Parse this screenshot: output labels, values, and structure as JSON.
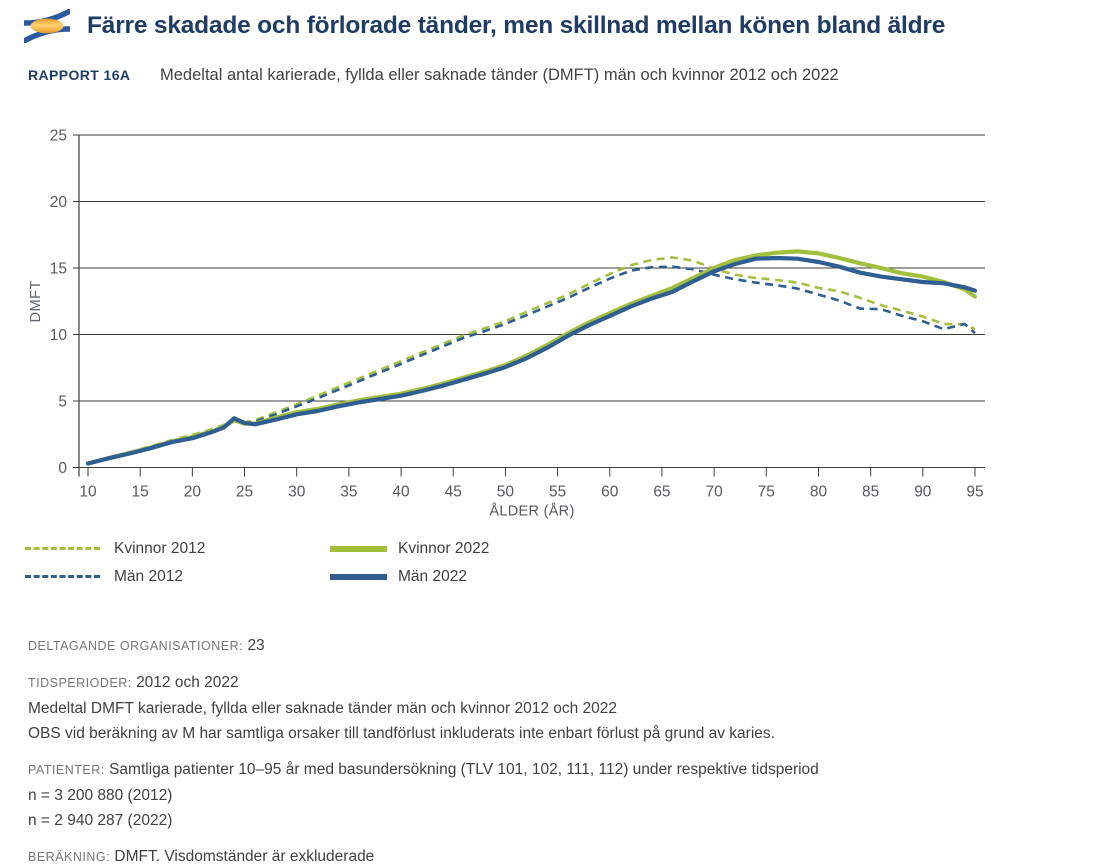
{
  "header": {
    "title": "Färre skadade och förlorade tänder, men skillnad mellan könen bland äldre"
  },
  "report": {
    "tag": "RAPPORT 16A",
    "subtitle": "Medeltal antal karierade, fyllda eller saknade tänder (DMFT) män och kvinnor 2012 och 2022"
  },
  "colors": {
    "brand_navy": "#1e3c64",
    "green": "#a3bf3b",
    "blue": "#2e5e92",
    "axis": "#3d3d3d",
    "tick_text": "#55595e",
    "body_text": "#414141",
    "label_text": "#767676",
    "logo_blue": "#2b5aa0",
    "logo_gold": "#efa42f"
  },
  "chart_data": {
    "type": "line",
    "title": "Medeltal antal karierade, fyllda eller saknade tänder (DMFT) män och kvinnor 2012 och 2022",
    "xlabel": "ÅLDER (ÅR)",
    "ylabel": "DMFT",
    "xlim": [
      10,
      95
    ],
    "ylim": [
      0,
      25
    ],
    "xticks": [
      10,
      15,
      20,
      25,
      30,
      35,
      40,
      45,
      50,
      55,
      60,
      65,
      70,
      75,
      80,
      85,
      90,
      95
    ],
    "yticks": [
      0,
      5,
      10,
      15,
      20,
      25
    ],
    "grid": true,
    "legend_position": "bottom-left",
    "x": [
      10,
      12,
      14,
      16,
      18,
      20,
      22,
      23,
      24,
      25,
      26,
      28,
      30,
      32,
      34,
      36,
      38,
      40,
      42,
      44,
      46,
      48,
      50,
      52,
      54,
      56,
      58,
      60,
      62,
      64,
      66,
      68,
      70,
      72,
      74,
      76,
      78,
      80,
      82,
      84,
      86,
      88,
      90,
      92,
      94,
      95
    ],
    "series": [
      {
        "name": "Kvinnor 2012",
        "color": "#a3bf3b",
        "dash": true,
        "values": [
          0.3,
          0.75,
          1.15,
          1.6,
          2.05,
          2.45,
          2.9,
          3.2,
          3.6,
          3.4,
          3.55,
          4.15,
          4.75,
          5.4,
          6.05,
          6.7,
          7.35,
          8.0,
          8.65,
          9.3,
          9.95,
          10.45,
          11.0,
          11.7,
          12.35,
          13.0,
          13.8,
          14.55,
          15.2,
          15.6,
          15.8,
          15.55,
          14.95,
          14.5,
          14.25,
          14.1,
          13.9,
          13.5,
          13.25,
          12.75,
          12.2,
          11.8,
          11.35,
          10.8,
          10.75,
          10.4
        ]
      },
      {
        "name": "Män 2012",
        "color": "#2e5e92",
        "dash": true,
        "values": [
          0.3,
          0.7,
          1.1,
          1.5,
          2.0,
          2.3,
          2.8,
          3.1,
          3.5,
          3.3,
          3.45,
          4.0,
          4.6,
          5.2,
          5.85,
          6.5,
          7.15,
          7.8,
          8.45,
          9.1,
          9.75,
          10.25,
          10.8,
          11.45,
          12.1,
          12.75,
          13.5,
          14.2,
          14.8,
          15.05,
          15.1,
          14.9,
          14.5,
          14.15,
          13.9,
          13.7,
          13.45,
          13.0,
          12.55,
          11.95,
          11.9,
          11.4,
          11.0,
          10.4,
          10.8,
          10.1
        ]
      },
      {
        "name": "Kvinnor 2022",
        "color": "#a3bf3b",
        "dash": false,
        "values": [
          0.3,
          0.7,
          1.1,
          1.5,
          1.95,
          2.3,
          2.75,
          3.05,
          3.55,
          3.3,
          3.3,
          3.75,
          4.15,
          4.4,
          4.75,
          5.05,
          5.3,
          5.55,
          5.9,
          6.3,
          6.75,
          7.2,
          7.7,
          8.4,
          9.2,
          10.1,
          10.9,
          11.6,
          12.3,
          12.9,
          13.5,
          14.25,
          15.0,
          15.6,
          15.95,
          16.15,
          16.25,
          16.1,
          15.75,
          15.35,
          15.0,
          14.6,
          14.35,
          13.95,
          13.4,
          12.85
        ]
      },
      {
        "name": "Män 2022",
        "color": "#2e5e92",
        "dash": false,
        "values": [
          0.3,
          0.7,
          1.05,
          1.45,
          1.9,
          2.2,
          2.7,
          3.0,
          3.7,
          3.35,
          3.25,
          3.6,
          4.0,
          4.25,
          4.6,
          4.9,
          5.15,
          5.4,
          5.75,
          6.15,
          6.6,
          7.05,
          7.55,
          8.2,
          9.0,
          9.9,
          10.7,
          11.4,
          12.1,
          12.7,
          13.2,
          14.0,
          14.75,
          15.3,
          15.7,
          15.75,
          15.7,
          15.45,
          15.1,
          14.65,
          14.35,
          14.15,
          13.95,
          13.85,
          13.55,
          13.3
        ]
      }
    ]
  },
  "notes": [
    {
      "label": "DELTAGANDE ORGANISATIONER:",
      "value": "23"
    },
    {
      "label": "TIDSPERIODER:",
      "value": "2012 och 2022",
      "line2": "Medeltal DMFT karierade, fyllda eller saknade tänder män och kvinnor 2012 och 2022",
      "line3": "OBS vid beräkning av M har samtliga orsaker till tandförlust inkluderats inte enbart förlust på grund av karies."
    },
    {
      "label": "PATIENTER:",
      "value": "Samtliga patienter 10–95 år med basundersökning (TLV 101, 102, 111, 112) under respektive tidsperiod",
      "line2": "n = 3 200 880 (2012)",
      "line3": "n = 2 940 287 (2022)"
    },
    {
      "label": "BERÄKNING:",
      "value": "DMFT. Visdomständer är exkluderade"
    }
  ]
}
